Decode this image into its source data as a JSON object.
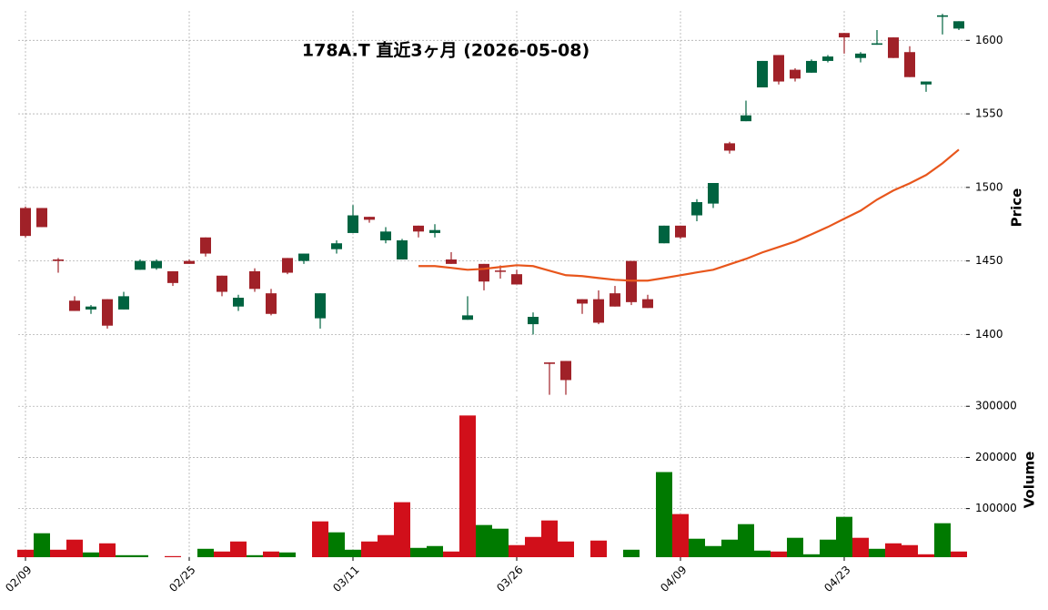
{
  "chart_data": {
    "type": "candlestick",
    "title": "178A.T  直近3ヶ月  (2026-05-08)",
    "categories": [
      "02/09",
      null,
      null,
      null,
      null,
      null,
      null,
      null,
      null,
      null,
      "02/25",
      null,
      null,
      null,
      null,
      null,
      null,
      null,
      null,
      null,
      "03/11",
      null,
      null,
      null,
      null,
      null,
      null,
      null,
      null,
      null,
      "03/26",
      null,
      null,
      null,
      null,
      null,
      null,
      null,
      null,
      null,
      "04/09",
      null,
      null,
      null,
      null,
      null,
      null,
      null,
      null,
      null,
      "04/23",
      null,
      null,
      null,
      null,
      null,
      null,
      null
    ],
    "open": [
      1486,
      1486,
      1451,
      1423,
      1417,
      1424,
      1417,
      1444,
      1445,
      1443,
      1450,
      1466,
      1440,
      1419,
      1443,
      1428,
      1452,
      1450,
      1411,
      1458,
      1469,
      1480,
      1464,
      1451,
      1474,
      1469,
      1451,
      1410,
      1448,
      1443.5,
      1441,
      1407,
      1381,
      1382,
      1424,
      1424,
      1428,
      1450,
      1424,
      1462,
      1474,
      1481,
      1489,
      1530,
      1545,
      1568,
      1590,
      1580,
      1578,
      1586,
      1605,
      1588,
      1597,
      1602,
      1592,
      1570,
      1616,
      1608
    ],
    "high": [
      1487,
      1486,
      1452,
      1426,
      1420,
      1424,
      1429,
      1451,
      1451,
      1443,
      1451,
      1466,
      1440,
      1427,
      1445,
      1431,
      1452,
      1455,
      1428,
      1464,
      1488,
      1480,
      1473,
      1465,
      1474,
      1475,
      1456,
      1426,
      1448,
      1447,
      1444,
      1415,
      1381,
      1382,
      1424,
      1430,
      1433,
      1450,
      1427,
      1474,
      1474,
      1492,
      1503,
      1531,
      1559,
      1586,
      1590,
      1581,
      1587,
      1590,
      1605,
      1592,
      1607,
      1602,
      1596,
      1572,
      1618,
      1613
    ],
    "low": [
      1466,
      1473,
      1442,
      1416,
      1414,
      1404,
      1417,
      1444,
      1444,
      1433,
      1448,
      1453,
      1426,
      1416,
      1429,
      1413,
      1441,
      1448,
      1404,
      1455,
      1469,
      1476,
      1462,
      1451,
      1466,
      1466,
      1448,
      1410,
      1430,
      1438,
      1434,
      1400,
      1359,
      1359,
      1414,
      1407,
      1419,
      1420,
      1418,
      1462,
      1465,
      1477,
      1486,
      1523,
      1545,
      1568,
      1570,
      1572,
      1578,
      1585,
      1591,
      1585,
      1597,
      1588,
      1575,
      1565,
      1604,
      1607
    ],
    "close": [
      1467,
      1473,
      1450,
      1416,
      1419,
      1406,
      1426,
      1450,
      1450,
      1435,
      1448,
      1455,
      1429,
      1425,
      1431,
      1414,
      1442,
      1455,
      1428,
      1462,
      1481,
      1478,
      1470,
      1464,
      1470,
      1471,
      1448,
      1413,
      1436,
      1443,
      1434,
      1412,
      1380,
      1369,
      1421,
      1408,
      1419,
      1422,
      1418,
      1474,
      1466,
      1490,
      1503,
      1525,
      1549,
      1586,
      1572,
      1574,
      1586,
      1589,
      1602,
      1591,
      1598,
      1588,
      1575,
      1572,
      1617,
      1613
    ],
    "up_color": "#006340",
    "down_color": "#a02128",
    "ma": {
      "color": "#e8561c",
      "values": [
        null,
        null,
        null,
        null,
        null,
        null,
        null,
        null,
        null,
        null,
        null,
        null,
        null,
        null,
        null,
        null,
        null,
        null,
        null,
        null,
        null,
        null,
        null,
        null,
        1446.5,
        1446.5,
        1445.3,
        1444,
        1444.6,
        1445.9,
        1447.1,
        1446.5,
        1443.4,
        1440.3,
        1439.7,
        1438.4,
        1437.2,
        1436.6,
        1436.6,
        1438.4,
        1440.3,
        1442.2,
        1444,
        1447.7,
        1451.4,
        1455.8,
        1459.5,
        1463.2,
        1468.1,
        1473.1,
        1478.7,
        1484.2,
        1491.7,
        1497.9,
        1502.8,
        1508.4,
        1516.4,
        1525.7
      ]
    },
    "volume": [
      19600,
      51800,
      19600,
      39300,
      14300,
      32100,
      8900,
      8900,
      5000,
      7100,
      5000,
      21400,
      16100,
      35700,
      8900,
      16100,
      14300,
      5000,
      75000,
      53600,
      19600,
      35700,
      48200,
      112500,
      23200,
      26800,
      16100,
      282000,
      67900,
      60700,
      28600,
      44600,
      76800,
      35700,
      5000,
      37500,
      5000,
      19600,
      5000,
      171400,
      89300,
      41100,
      26800,
      39300,
      69600,
      17900,
      16100,
      42900,
      10700,
      39300,
      83900,
      42900,
      21400,
      32100,
      28600,
      10700,
      71400,
      16100
    ],
    "volume_colors": [
      "#d10f1a",
      "#007a00",
      "#d10f1a",
      "#d10f1a",
      "#007a00",
      "#d10f1a",
      "#007a00",
      "#007a00",
      "#007a00",
      "#d10f1a",
      "#d10f1a",
      "#007a00",
      "#d10f1a",
      "#d10f1a",
      "#007a00",
      "#d10f1a",
      "#007a00",
      "#007a00",
      "#d10f1a",
      "#007a00",
      "#007a00",
      "#d10f1a",
      "#d10f1a",
      "#d10f1a",
      "#007a00",
      "#007a00",
      "#d10f1a",
      "#d10f1a",
      "#007a00",
      "#007a00",
      "#d10f1a",
      "#d10f1a",
      "#d10f1a",
      "#d10f1a",
      "#d10f1a",
      "#d10f1a",
      "#d10f1a",
      "#007a00",
      "#007a00",
      "#007a00",
      "#d10f1a",
      "#007a00",
      "#007a00",
      "#007a00",
      "#007a00",
      "#007a00",
      "#d10f1a",
      "#007a00",
      "#007a00",
      "#007a00",
      "#007a00",
      "#d10f1a",
      "#007a00",
      "#d10f1a",
      "#d10f1a",
      "#d10f1a",
      "#007a00",
      "#d10f1a"
    ],
    "ylabel": "Price",
    "ylim": [
      1360,
      1620
    ],
    "yticks": [
      1400,
      1450,
      1500,
      1550,
      1600
    ],
    "y2label": "Volume",
    "y2lim": [
      5000,
      320000
    ],
    "y2ticks": [
      100000,
      200000,
      300000
    ],
    "grid": true
  }
}
